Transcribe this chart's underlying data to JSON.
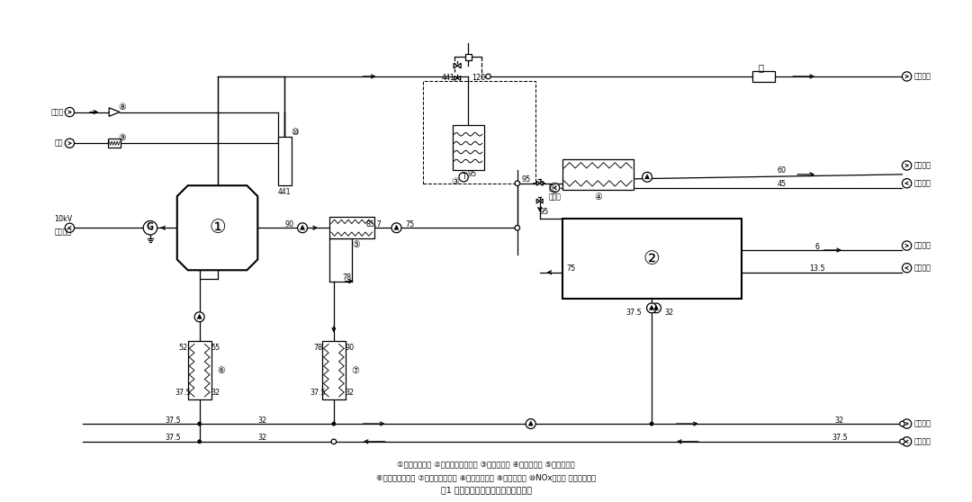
{
  "title": "图1 上海中心冷热电三联供系统原理图",
  "caption_line1": "①内燃发电机组 ②热水型溴化锂机组 ③烟气换热器 ④供热换热器 ⑤机组换热器",
  "caption_line2": "⑥低温冷却换热器 ⑦高温冷却换热器 ⑧燃气进气阀组 ⑨空气过滤器 ⑩NOx催化器 ⑪烟气消声器",
  "bg_color": "#ffffff",
  "lw": 0.9,
  "lw2": 1.5,
  "fs": 5.8,
  "fs2": 7.0,
  "fs3": 8.5
}
